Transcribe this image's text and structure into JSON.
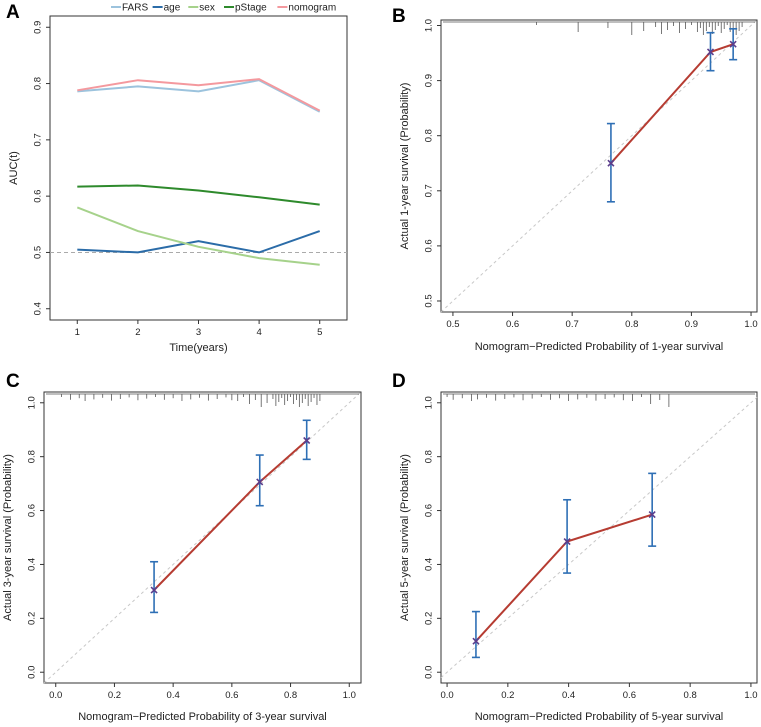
{
  "panel_labels": [
    "A",
    "B",
    "C",
    "D"
  ],
  "chart_data": [
    {
      "type": "line",
      "panel": "A",
      "title": "",
      "xlabel": "Time(years)",
      "ylabel": "AUC(t)",
      "x": [
        1,
        2,
        3,
        4,
        5
      ],
      "xlim": [
        0.55,
        5.45
      ],
      "ylim": [
        0.38,
        0.92
      ],
      "xticks": [
        "1",
        "2",
        "3",
        "4",
        "5"
      ],
      "yticks": [
        "0.4",
        "0.5",
        "0.6",
        "0.7",
        "0.8",
        "0.9"
      ],
      "ytick_values": [
        0.4,
        0.5,
        0.6,
        0.7,
        0.8,
        0.9
      ],
      "reference_line": 0.5,
      "legend_position": "top",
      "series": [
        {
          "name": "FARS",
          "color": "#9cc3dd",
          "values": [
            0.786,
            0.795,
            0.786,
            0.806,
            0.75
          ]
        },
        {
          "name": "age",
          "color": "#2b6ca8",
          "values": [
            0.505,
            0.5,
            0.52,
            0.5,
            0.538
          ]
        },
        {
          "name": "sex",
          "color": "#a6d28b",
          "values": [
            0.58,
            0.538,
            0.51,
            0.49,
            0.478
          ]
        },
        {
          "name": "pStage",
          "color": "#2e8a2c",
          "values": [
            0.617,
            0.619,
            0.61,
            0.598,
            0.585
          ]
        },
        {
          "name": "nomogram",
          "color": "#f4999e",
          "values": [
            0.788,
            0.806,
            0.797,
            0.808,
            0.752
          ]
        }
      ]
    },
    {
      "type": "calibration",
      "panel": "B",
      "xlabel": "Nomogram−Predicted Probability of 1-year survival",
      "ylabel": "Actual 1-year survival (Probability)",
      "xlim": [
        0.48,
        1.01
      ],
      "ylim": [
        0.48,
        1.01
      ],
      "xticks": [
        "0.5",
        "0.6",
        "0.7",
        "0.8",
        "0.9",
        "1.0"
      ],
      "xtick_values": [
        0.5,
        0.6,
        0.7,
        0.8,
        0.9,
        1.0
      ],
      "yticks": [
        "0.5",
        "0.6",
        "0.7",
        "0.8",
        "0.9",
        "1.0"
      ],
      "ytick_values": [
        0.5,
        0.6,
        0.7,
        0.8,
        0.9,
        1.0
      ],
      "points": [
        {
          "x": 0.765,
          "y": 0.75,
          "lo": 0.68,
          "hi": 0.822
        },
        {
          "x": 0.932,
          "y": 0.952,
          "lo": 0.918,
          "hi": 0.987
        },
        {
          "x": 0.97,
          "y": 0.966,
          "lo": 0.938,
          "hi": 0.994
        }
      ],
      "rug": [
        0.64,
        0.71,
        0.76,
        0.8,
        0.82,
        0.84,
        0.85,
        0.86,
        0.87,
        0.88,
        0.89,
        0.9,
        0.91,
        0.915,
        0.92,
        0.925,
        0.93,
        0.935,
        0.94,
        0.945,
        0.95,
        0.955,
        0.96,
        0.965,
        0.97,
        0.975,
        0.98,
        0.985
      ],
      "line_color": "#b63c32",
      "errorbar_color": "#2e6fb5",
      "diagonal_color": "#c8c8c8"
    },
    {
      "type": "calibration",
      "panel": "C",
      "xlabel": "Nomogram−Predicted Probability of 3-year survival",
      "ylabel": "Actual 3-year survival (Probability)",
      "xlim": [
        -0.04,
        1.04
      ],
      "ylim": [
        -0.04,
        1.04
      ],
      "xticks": [
        "0.0",
        "0.2",
        "0.4",
        "0.6",
        "0.8",
        "1.0"
      ],
      "xtick_values": [
        0,
        0.2,
        0.4,
        0.6,
        0.8,
        1.0
      ],
      "yticks": [
        "0.0",
        "0.2",
        "0.4",
        "0.6",
        "0.8",
        "1.0"
      ],
      "ytick_values": [
        0,
        0.2,
        0.4,
        0.6,
        0.8,
        1.0
      ],
      "points": [
        {
          "x": 0.335,
          "y": 0.305,
          "lo": 0.222,
          "hi": 0.41
        },
        {
          "x": 0.695,
          "y": 0.706,
          "lo": 0.618,
          "hi": 0.806
        },
        {
          "x": 0.855,
          "y": 0.86,
          "lo": 0.79,
          "hi": 0.935
        }
      ],
      "rug": [
        0.02,
        0.05,
        0.08,
        0.1,
        0.13,
        0.16,
        0.19,
        0.22,
        0.25,
        0.28,
        0.31,
        0.34,
        0.37,
        0.4,
        0.43,
        0.46,
        0.49,
        0.52,
        0.55,
        0.58,
        0.6,
        0.62,
        0.64,
        0.66,
        0.68,
        0.7,
        0.72,
        0.74,
        0.75,
        0.76,
        0.77,
        0.78,
        0.79,
        0.8,
        0.81,
        0.82,
        0.83,
        0.84,
        0.85,
        0.86,
        0.87,
        0.88,
        0.89,
        0.9
      ],
      "line_color": "#b63c32",
      "errorbar_color": "#2e6fb5",
      "diagonal_color": "#c8c8c8"
    },
    {
      "type": "calibration",
      "panel": "D",
      "xlabel": "Nomogram−Predicted Probability of 5-year survival",
      "ylabel": "Actual 5-year survival (Probability)",
      "xlim": [
        -0.02,
        1.02
      ],
      "ylim": [
        -0.04,
        1.04
      ],
      "xticks": [
        "0.0",
        "0.2",
        "0.4",
        "0.6",
        "0.8",
        "1.0"
      ],
      "xtick_values": [
        0,
        0.2,
        0.4,
        0.6,
        0.8,
        1.0
      ],
      "yticks": [
        "0.0",
        "0.2",
        "0.4",
        "0.6",
        "0.8",
        "1.0"
      ],
      "ytick_values": [
        0,
        0.2,
        0.4,
        0.6,
        0.8,
        1.0
      ],
      "points": [
        {
          "x": 0.095,
          "y": 0.115,
          "lo": 0.055,
          "hi": 0.225
        },
        {
          "x": 0.395,
          "y": 0.485,
          "lo": 0.368,
          "hi": 0.64
        },
        {
          "x": 0.675,
          "y": 0.585,
          "lo": 0.468,
          "hi": 0.738
        }
      ],
      "rug": [
        0.0,
        0.02,
        0.05,
        0.08,
        0.1,
        0.13,
        0.16,
        0.19,
        0.22,
        0.25,
        0.28,
        0.31,
        0.34,
        0.37,
        0.4,
        0.43,
        0.46,
        0.49,
        0.52,
        0.55,
        0.58,
        0.61,
        0.64,
        0.67,
        0.7,
        0.73
      ],
      "line_color": "#b63c32",
      "errorbar_color": "#2e6fb5",
      "diagonal_color": "#c8c8c8"
    }
  ]
}
